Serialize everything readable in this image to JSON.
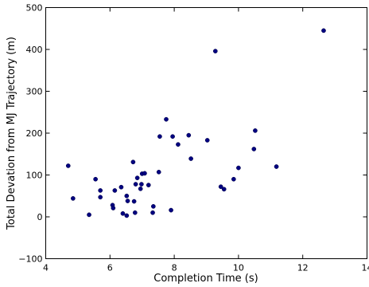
{
  "chart_data": {
    "type": "scatter",
    "title": "",
    "xlabel": "Completion Time (s)",
    "ylabel": "Total Devation from MJ Trajectory (m)",
    "xlim": [
      4,
      14
    ],
    "ylim": [
      -100,
      500
    ],
    "xticks": [
      4,
      6,
      8,
      10,
      12,
      14
    ],
    "yticks": [
      -100,
      0,
      100,
      200,
      300,
      400,
      500
    ],
    "xtick_labels": [
      "4",
      "6",
      "8",
      "10",
      "12",
      "14"
    ],
    "ytick_labels": [
      "−100",
      "0",
      "100",
      "200",
      "300",
      "400",
      "500"
    ],
    "grid": false,
    "legend": false,
    "marker_color": "#000080",
    "series": [
      {
        "x": [
          4.7,
          4.85,
          5.35,
          5.55,
          5.7,
          5.7,
          6.08,
          6.1,
          6.15,
          6.35,
          6.4,
          6.52,
          6.52,
          6.55,
          6.72,
          6.75,
          6.78,
          6.8,
          6.85,
          6.95,
          6.98,
          7.0,
          7.08,
          7.2,
          7.33,
          7.35,
          7.52,
          7.55,
          7.75,
          7.9,
          7.95,
          8.12,
          8.45,
          8.52,
          9.03,
          9.28,
          9.45,
          9.55,
          9.85,
          10.0,
          10.48,
          10.52,
          11.18,
          12.65
        ],
        "y": [
          122,
          44,
          5,
          90,
          63,
          47,
          28,
          21,
          63,
          71,
          8,
          3,
          50,
          38,
          131,
          37,
          10,
          78,
          93,
          67,
          78,
          103,
          104,
          76,
          10,
          25,
          107,
          192,
          233,
          16,
          192,
          173,
          195,
          139,
          183,
          396,
          72,
          66,
          90,
          117,
          162,
          206,
          120,
          445
        ]
      }
    ]
  }
}
